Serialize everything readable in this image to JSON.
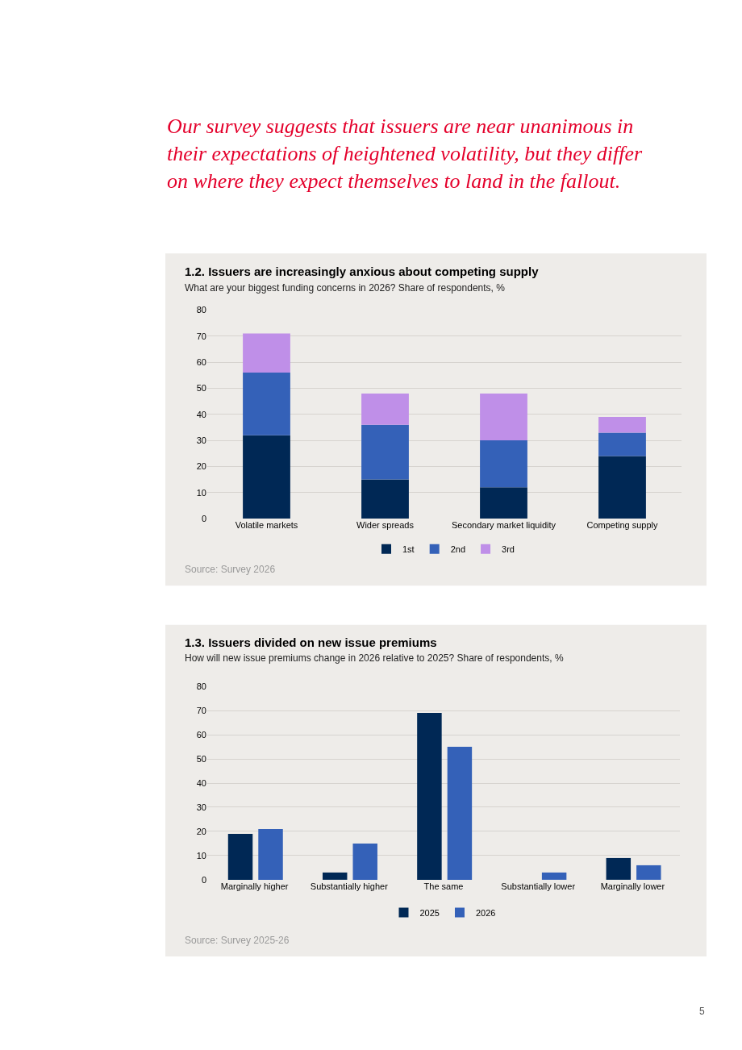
{
  "chart_data": [
    {
      "type": "bar",
      "stacked": true,
      "title": "1.2. Issuers are increasingly anxious about competing supply",
      "subtitle": "What are your biggest funding concerns in 2026? Share of respondents, %",
      "categories": [
        "Volatile markets",
        "Wider spreads",
        "Secondary market liquidity",
        "Competing supply"
      ],
      "series": [
        {
          "name": "1st",
          "color": "#002855",
          "values": [
            32,
            15,
            12,
            24
          ]
        },
        {
          "name": "2nd",
          "color": "#3461b8",
          "values": [
            24,
            21,
            18,
            9
          ]
        },
        {
          "name": "3rd",
          "color": "#bf8fe8",
          "values": [
            15,
            12,
            18,
            6
          ]
        }
      ],
      "ylim": [
        0,
        80
      ],
      "yticks": [
        0,
        10,
        20,
        30,
        40,
        50,
        60,
        70,
        80
      ],
      "grid": "y",
      "legend": "bottom",
      "annotations": [
        "Source: Survey 2026",
        "Our survey suggests that issuers are near unanimous in\ntheir expectations of heightened volatility, but they differ\non where they expect themselves to land in the fallout."
      ]
    },
    {
      "type": "bar",
      "title": "1.3. Issuers divided on new issue premiums",
      "subtitle": "How will new issue premiums change in 2026 relative to 2025? Share of respondents, %",
      "categories": [
        "Marginally higher",
        "Substantially higher",
        "The same",
        "Substantially lower",
        "Marginally lower"
      ],
      "series": [
        {
          "name": "2025",
          "color": "#002855",
          "values": [
            19,
            3,
            69,
            0,
            9
          ]
        },
        {
          "name": "2026",
          "color": "#3461b8",
          "values": [
            21,
            15,
            55,
            3,
            6
          ]
        }
      ],
      "ylim": [
        0,
        80
      ],
      "yticks": [
        0,
        10,
        20,
        30,
        40,
        50,
        60,
        70,
        80
      ],
      "grid": "y",
      "legend": "bottom",
      "annotations": [
        "Source: Survey 2025-26",
        "5"
      ]
    }
  ]
}
